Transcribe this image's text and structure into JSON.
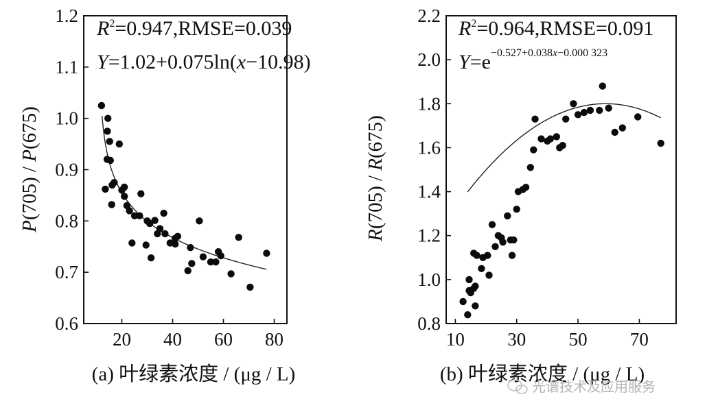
{
  "chart_data": [
    {
      "type": "scatter",
      "panel": "a",
      "xlabel": "(a) 叶绿素浓度 / (μg / L)",
      "ylabel": "P(705) / P(675)",
      "ylabel_parts": [
        "P",
        "(705) / ",
        "P",
        "(675)"
      ],
      "xlim": [
        5,
        85
      ],
      "ylim": [
        0.6,
        1.2
      ],
      "xticks": [
        20,
        40,
        60,
        80
      ],
      "yticks": [
        0.6,
        0.7,
        0.8,
        0.9,
        1.0,
        1.1,
        1.2
      ],
      "ytick_labels": [
        "0.6",
        "0.7",
        "0.8",
        "0.9",
        "1.0",
        "1.1",
        "1.2"
      ],
      "annotation_r2": "R2=0.947,RMSE=0.039",
      "annotation_r2_parts": [
        "R",
        "2",
        "=0.947,RMSE=0.039"
      ],
      "annotation_eq": "Y=1.02+0.075ln(x−10.98)",
      "annotation_eq_parts": [
        "Y",
        "=1.02+0.075ln(",
        "x",
        "−10.98)"
      ],
      "fit": {
        "model": "log",
        "a": 1.02,
        "b": 0.075,
        "c": 10.98,
        "sign": -1,
        "x_start": 12.2,
        "x_end": 77
      },
      "points": [
        [
          12,
          1.025
        ],
        [
          14.5,
          1.0
        ],
        [
          14.3,
          0.975
        ],
        [
          15.2,
          0.955
        ],
        [
          14.2,
          0.92
        ],
        [
          15.5,
          0.918
        ],
        [
          19,
          0.95
        ],
        [
          13.5,
          0.862
        ],
        [
          16.2,
          0.87
        ],
        [
          17,
          0.875
        ],
        [
          20,
          0.86
        ],
        [
          21,
          0.866
        ],
        [
          16,
          0.832
        ],
        [
          21,
          0.848
        ],
        [
          22,
          0.83
        ],
        [
          23,
          0.82
        ],
        [
          25,
          0.81
        ],
        [
          27,
          0.81
        ],
        [
          27.5,
          0.853
        ],
        [
          30,
          0.8
        ],
        [
          31,
          0.795
        ],
        [
          33,
          0.801
        ],
        [
          35,
          0.785
        ],
        [
          36.5,
          0.815
        ],
        [
          34,
          0.775
        ],
        [
          37,
          0.775
        ],
        [
          39,
          0.757
        ],
        [
          41,
          0.766
        ],
        [
          42,
          0.77
        ],
        [
          41,
          0.755
        ],
        [
          24,
          0.757
        ],
        [
          29.5,
          0.753
        ],
        [
          31.5,
          0.728
        ],
        [
          47,
          0.748
        ],
        [
          50.5,
          0.8
        ],
        [
          52,
          0.73
        ],
        [
          55,
          0.72
        ],
        [
          57,
          0.72
        ],
        [
          58,
          0.74
        ],
        [
          59,
          0.732
        ],
        [
          47.5,
          0.717
        ],
        [
          46,
          0.703
        ],
        [
          63,
          0.697
        ],
        [
          66,
          0.768
        ],
        [
          70.5,
          0.671
        ],
        [
          77,
          0.737
        ]
      ]
    },
    {
      "type": "scatter",
      "panel": "b",
      "xlabel": "(b) 叶绿素浓度 / (μg / L)",
      "ylabel": "R(705) / R(675)",
      "ylabel_parts": [
        "R",
        "(705) / ",
        "R",
        "(675)"
      ],
      "xlim": [
        7,
        82
      ],
      "ylim": [
        0.8,
        2.2
      ],
      "xticks": [
        10,
        30,
        50,
        70
      ],
      "yticks": [
        0.8,
        1.0,
        1.2,
        1.4,
        1.6,
        1.8,
        2.0,
        2.2
      ],
      "ytick_labels": [
        "0.8",
        "1.0",
        "1.2",
        "1.4",
        "1.6",
        "1.8",
        "2.0",
        "2.2"
      ],
      "annotation_r2": "R2=0.964,RMSE=0.091",
      "annotation_r2_parts": [
        "R",
        "2",
        "=0.964,RMSE=0.091"
      ],
      "annotation_eq": "Y=e−0.527+0.038x−0.000 323",
      "annotation_eq_parts": [
        "Y",
        "=e",
        "−0.527+0.038",
        "x",
        "−0.000 323"
      ],
      "fit": {
        "model": "quadratic",
        "peak_x": 59,
        "peak_y": 1.8,
        "k": 0.000198,
        "x_start": 14,
        "x_end": 77
      },
      "points": [
        [
          12.5,
          0.9
        ],
        [
          14,
          0.84
        ],
        [
          14.5,
          0.95
        ],
        [
          14.5,
          1.0
        ],
        [
          15,
          0.94
        ],
        [
          16,
          0.96
        ],
        [
          16.5,
          0.97
        ],
        [
          16.5,
          0.88
        ],
        [
          16,
          1.12
        ],
        [
          17,
          1.11
        ],
        [
          18.5,
          1.05
        ],
        [
          19,
          1.1
        ],
        [
          20.5,
          1.11
        ],
        [
          21,
          1.02
        ],
        [
          22,
          1.25
        ],
        [
          23,
          1.15
        ],
        [
          24,
          1.2
        ],
        [
          25,
          1.19
        ],
        [
          25.5,
          1.17
        ],
        [
          27,
          1.29
        ],
        [
          28,
          1.18
        ],
        [
          28.5,
          1.11
        ],
        [
          29,
          1.18
        ],
        [
          30,
          1.32
        ],
        [
          30.5,
          1.4
        ],
        [
          32,
          1.41
        ],
        [
          33,
          1.42
        ],
        [
          34.5,
          1.51
        ],
        [
          35.5,
          1.59
        ],
        [
          36,
          1.73
        ],
        [
          38,
          1.64
        ],
        [
          40,
          1.63
        ],
        [
          41,
          1.64
        ],
        [
          43,
          1.65
        ],
        [
          44,
          1.6
        ],
        [
          45,
          1.61
        ],
        [
          46,
          1.73
        ],
        [
          48.5,
          1.8
        ],
        [
          50,
          1.75
        ],
        [
          52,
          1.76
        ],
        [
          54,
          1.77
        ],
        [
          57,
          1.77
        ],
        [
          58,
          1.88
        ],
        [
          60,
          1.78
        ],
        [
          62,
          1.67
        ],
        [
          64.5,
          1.69
        ],
        [
          69.5,
          1.74
        ],
        [
          77,
          1.62
        ]
      ]
    }
  ],
  "watermark": {
    "text": "光谱技术及应用服务",
    "icon": "wechat-icon"
  }
}
